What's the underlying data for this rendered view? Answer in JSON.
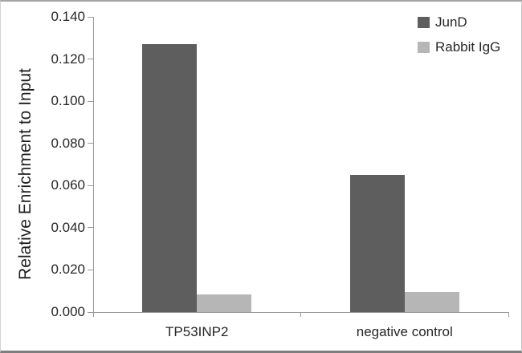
{
  "chart_data": {
    "type": "bar",
    "title": "",
    "xlabel": "",
    "ylabel": "Relative Enrichment to Input",
    "categories": [
      "TP53INP2",
      "negative control"
    ],
    "series": [
      {
        "name": "JunD",
        "color": "#5e5e5e",
        "values": [
          0.127,
          0.065
        ]
      },
      {
        "name": "Rabbit IgG",
        "color": "#b6b6b6",
        "values": [
          0.0085,
          0.0095
        ]
      }
    ],
    "ylim": [
      0,
      0.14
    ],
    "ytick_step": 0.02,
    "yticks": [
      "0.000",
      "0.020",
      "0.040",
      "0.060",
      "0.080",
      "0.100",
      "0.120",
      "0.140"
    ],
    "legend_position": "top-right",
    "grid": false,
    "axis_color": "#9a9a9a",
    "text_color": "#262626"
  }
}
